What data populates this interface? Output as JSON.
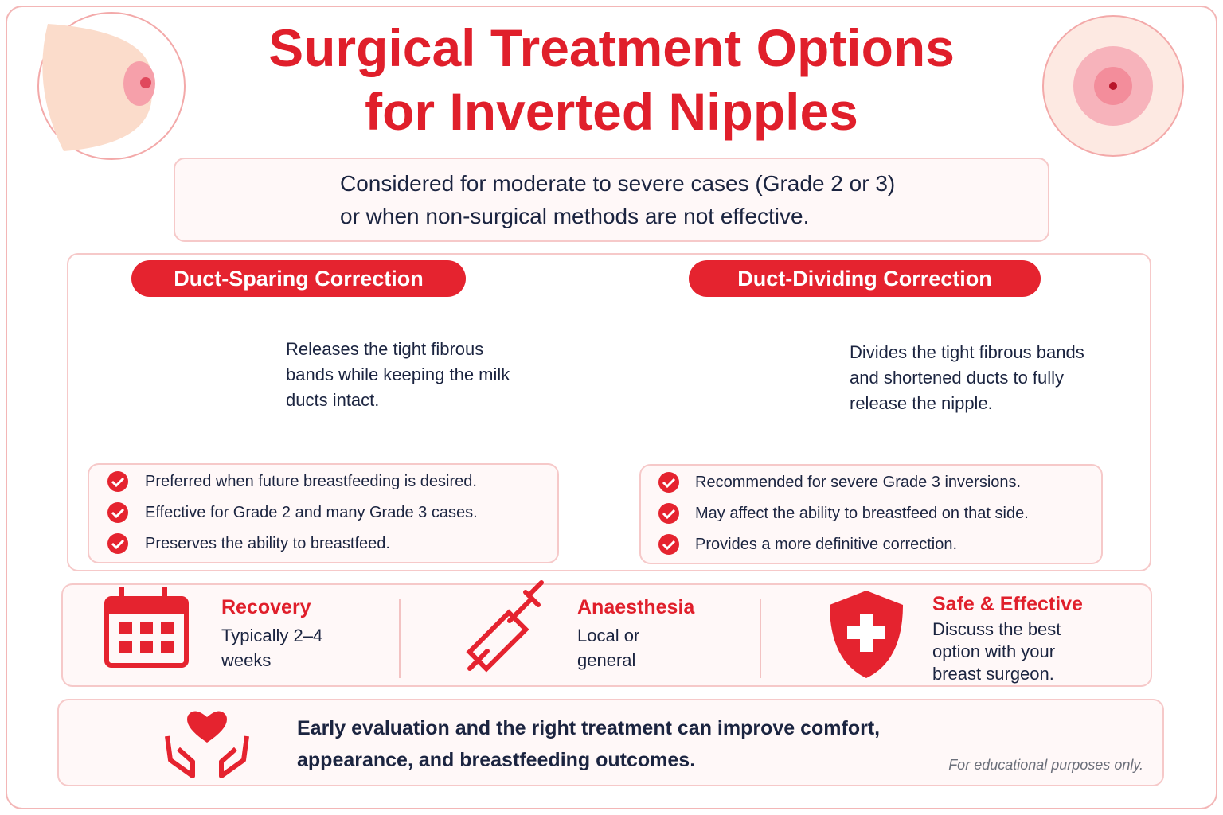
{
  "header": {
    "title": [
      "Surgical Treatment Options",
      "for Inverted Nipples"
    ]
  },
  "intro": {
    "lines": [
      "Considered for moderate to severe cases (Grade 2 or 3)",
      "or when non-surgical methods are not effective."
    ]
  },
  "options": [
    {
      "title": "Duct-Sparing Correction",
      "description": "Releases the tight fibrous bands while keeping the milk ducts intact.",
      "points": [
        "Preferred when future breastfeeding is desired.",
        "Effective for Grade 2 and many Grade 3 cases.",
        "Preserves the ability to breastfeed."
      ]
    },
    {
      "title": "Duct-Dividing Correction",
      "description": "Divides the tight fibrous bands and shortened ducts to fully release the nipple.",
      "points": [
        "Recommended for severe Grade 3 inversions.",
        "May affect the ability to breastfeed on that side.",
        "Provides a more definitive correction."
      ]
    }
  ],
  "facts": [
    {
      "title": "Recovery",
      "text": "Typically 2–4 weeks"
    },
    {
      "title": "Anaesthesia",
      "text": "Local or general"
    },
    {
      "title": "Safe & Effective",
      "text": "Discuss the best option with your breast surgeon."
    }
  ],
  "footer": {
    "message": "Early evaluation and the right treatment can improve comfort, appearance, and breastfeeding outcomes.",
    "disclaimer": "For educational purposes only."
  }
}
